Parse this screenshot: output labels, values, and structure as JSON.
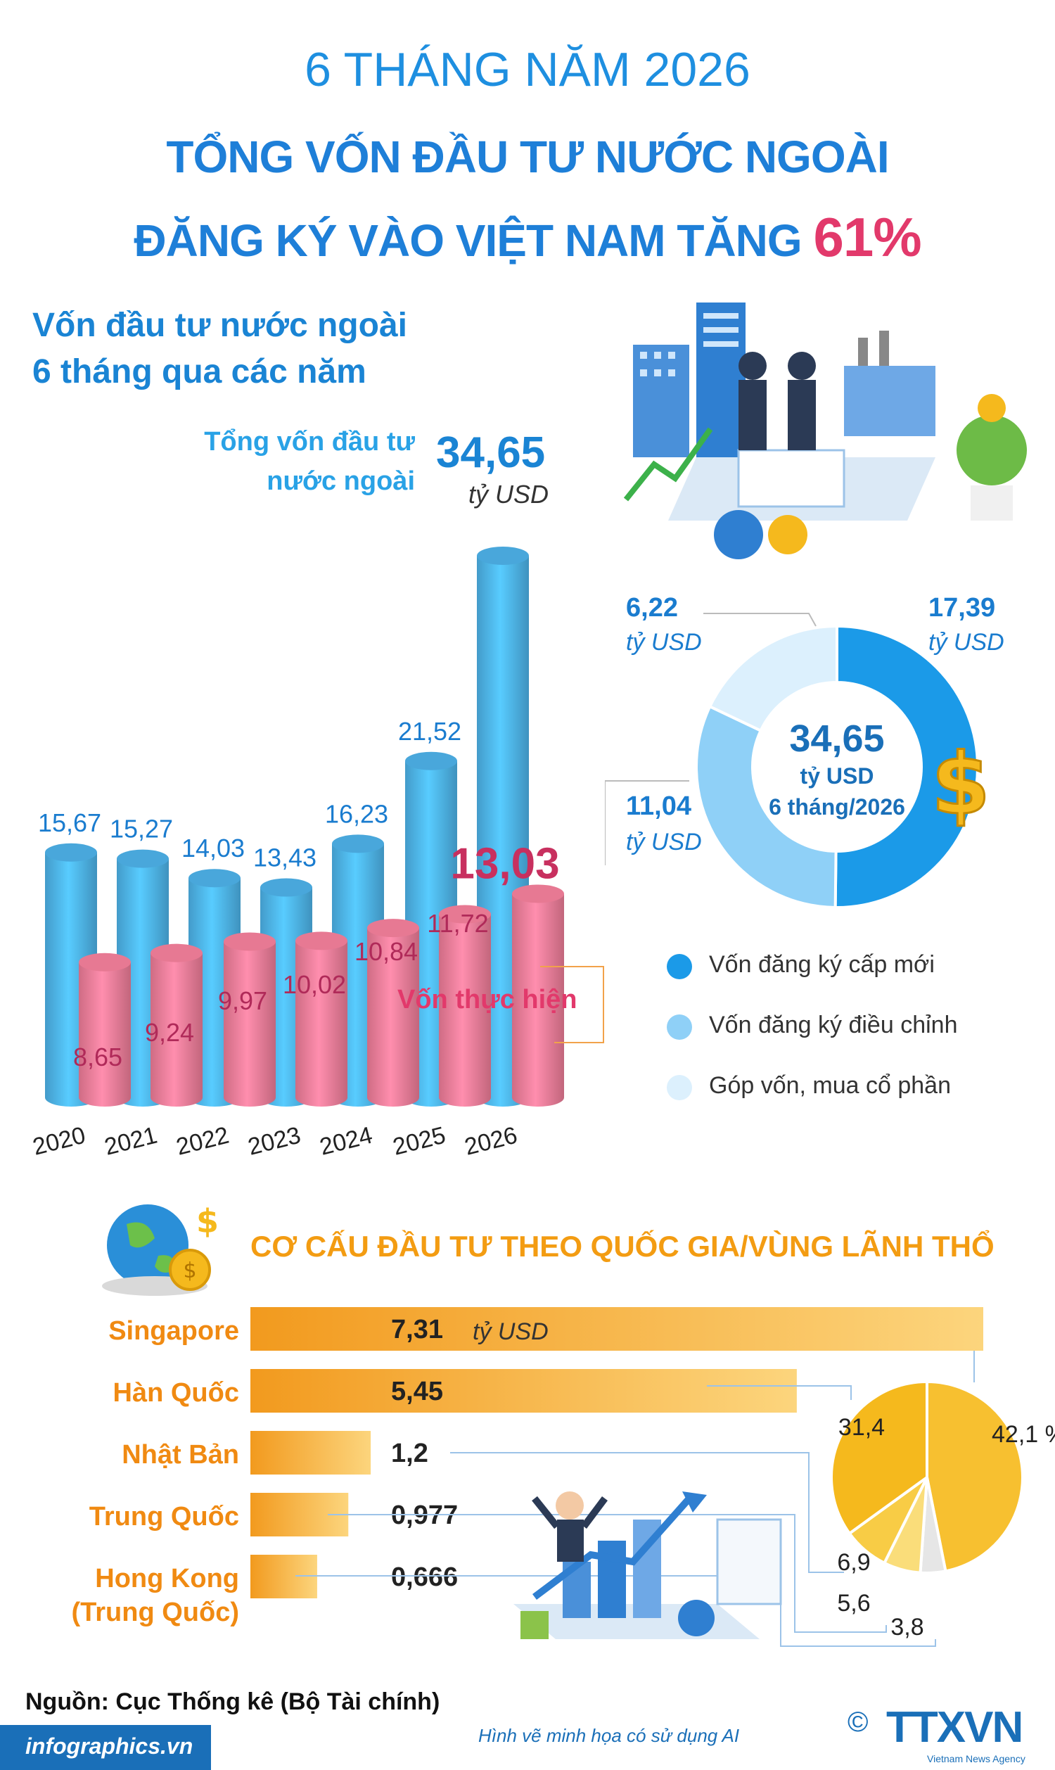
{
  "header": {
    "line1": "6 THÁNG NĂM 2026",
    "line2": "TỔNG VỐN ĐẦU TƯ NƯỚC NGOÀI",
    "line3": "ĐĂNG KÝ VÀO VIỆT NAM TĂNG",
    "highlight": "61%"
  },
  "section1": {
    "title_line1": "Vốn đầu tư nước ngoài",
    "title_line2": "6 tháng qua các năm",
    "total_label_line1": "Tổng vốn đầu tư",
    "total_label_line2": "nước ngoài",
    "total_value": "34,65",
    "unit": "tỷ USD",
    "realized_label": "Vốn thực hiện"
  },
  "chart_data": [
    {
      "type": "bar",
      "categories": [
        "2020",
        "2021",
        "2022",
        "2023",
        "2024",
        "2025",
        "2026"
      ],
      "series": [
        {
          "name": "Tổng vốn đầu tư nước ngoài",
          "values": [
            15.67,
            15.27,
            14.03,
            13.43,
            16.23,
            21.52,
            34.65
          ],
          "labels": [
            "15,67",
            "15,27",
            "14,03",
            "13,43",
            "16,23",
            "21,52",
            "34,65"
          ],
          "color": "#4fb6ee"
        },
        {
          "name": "Vốn thực hiện",
          "values": [
            8.65,
            9.24,
            9.97,
            10.02,
            10.84,
            11.72,
            13.03
          ],
          "labels": [
            "8,65",
            "9,24",
            "9,97",
            "10,02",
            "10,84",
            "11,72",
            "13,03"
          ],
          "color": "#f37f9b"
        }
      ],
      "ylim": [
        0,
        36
      ],
      "unit": "tỷ USD"
    },
    {
      "type": "pie",
      "style": "donut",
      "center_value": "34,65",
      "center_unit": "tỷ USD",
      "center_period": "6 tháng/2026",
      "slices": [
        {
          "name": "Vốn đăng ký cấp mới",
          "value": 17.39,
          "label": "17,39",
          "color": "#1b9ae8"
        },
        {
          "name": "Vốn đăng ký điều chỉnh",
          "value": 11.04,
          "label": "11,04",
          "color": "#8fd0f7"
        },
        {
          "name": "Góp vốn, mua cổ phần",
          "value": 6.22,
          "label": "6,22",
          "color": "#dcf0fd"
        }
      ],
      "unit": "tỷ USD",
      "legend_position": "bottom"
    },
    {
      "type": "bar",
      "orientation": "horizontal",
      "title": "CƠ CẤU ĐẦU TƯ THEO QUỐC GIA/VÙNG LÃNH THỔ",
      "categories": [
        "Singapore",
        "Hàn Quốc",
        "Nhật Bản",
        "Trung Quốc",
        "Hong Kong (Trung Quốc)"
      ],
      "values": [
        7.31,
        5.45,
        1.2,
        0.977,
        0.666
      ],
      "labels": [
        "7,31",
        "5,45",
        "1,2",
        "0,977",
        "0,666"
      ],
      "unit": "tỷ USD",
      "color": "#f7b43b"
    },
    {
      "type": "pie",
      "slices": [
        {
          "value": 42.1,
          "label": "42,1 %",
          "color": "#f7c030"
        },
        {
          "value": 31.4,
          "label": "31,4",
          "color": "#f5b91d"
        },
        {
          "value": 6.9,
          "label": "6,9",
          "color": "#f8cc45"
        },
        {
          "value": 5.6,
          "label": "5,6",
          "color": "#fadd7a"
        },
        {
          "value": 3.8,
          "label": "3,8",
          "color": "#e6e6e6"
        }
      ]
    }
  ],
  "country_labels": {
    "c0": "Singapore",
    "c1": "Hàn Quốc",
    "c2": "Nhật Bản",
    "c3": "Trung Quốc",
    "c4a": "Hong Kong",
    "c4b": "(Trung Quốc)"
  },
  "footer": {
    "source": "Nguồn: Cục Thống kê (Bộ Tài chính)",
    "ai_note": "Hình vẽ minh họa có sử dụng AI",
    "site": "infographics.vn",
    "logo": "TTXVN",
    "logo_sub": "Vietnam News Agency",
    "copyright": "©"
  },
  "colors": {
    "title_blue": "#1e7fd8",
    "accent_red": "#e2396b",
    "orange": "#f39c12",
    "bar_blue": "#4fb6ee",
    "bar_pink": "#f37f9b"
  }
}
